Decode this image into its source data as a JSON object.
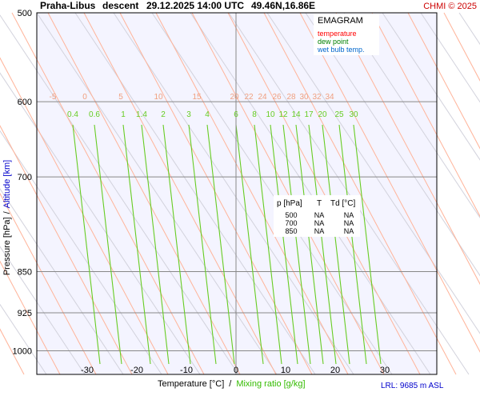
{
  "header": {
    "station": "Praha-Libus",
    "mode": "descent",
    "datetime": "29.12.2025 14:00 UTC",
    "coords": "49.46N,16.86E",
    "copyright": "CHMI © 2025"
  },
  "legend": {
    "title": "EMAGRAM",
    "temperature": "temperature",
    "dew_point": "dew point",
    "wet_bulb": "wet bulb temp.",
    "colors": {
      "temperature": "#ff0000",
      "dew_point": "#008000",
      "wet_bulb": "#0066cc"
    }
  },
  "axes": {
    "y_label": "Pressure [hPa]",
    "y_sep": "/",
    "y_label_alt": "Altitude [km]",
    "x_label": "Temperature [°C]",
    "x_sep": "/",
    "x_label_mix": "Mixing ratio [g/kg]",
    "lrl": "LRL: 9685 m ASL"
  },
  "table": {
    "headers": [
      "p [hPa]",
      "T",
      "Td [°C]"
    ],
    "rows": [
      [
        "500",
        "NA",
        "NA"
      ],
      [
        "700",
        "NA",
        "NA"
      ],
      [
        "850",
        "NA",
        "NA"
      ]
    ]
  },
  "chart_data": {
    "type": "line",
    "pressure_ticks": [
      500,
      600,
      700,
      850,
      925,
      1000
    ],
    "temperature_ticks": [
      -30,
      -20,
      -10,
      0,
      10,
      20,
      30
    ],
    "xlim": [
      -40,
      40
    ],
    "ylim": [
      1000,
      500
    ],
    "y_scale": "log",
    "grid": true,
    "isotherm_labels": [
      "-5",
      "0",
      "5",
      "10",
      "15",
      "20",
      "22",
      "24",
      "26",
      "28",
      "30",
      "32",
      "34"
    ],
    "mixing_ratio_labels": [
      "0.4",
      "0.6",
      "1",
      "1.4",
      "2",
      "3",
      "4",
      "6",
      "8",
      "10",
      "12",
      "14",
      "17",
      "20",
      "25",
      "30"
    ],
    "series": []
  }
}
